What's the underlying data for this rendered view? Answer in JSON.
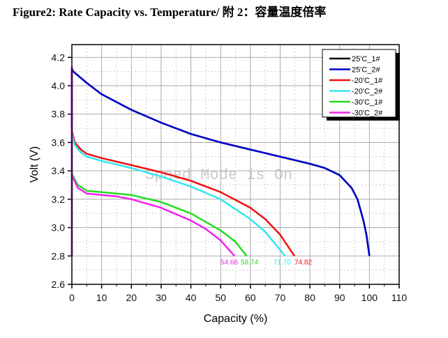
{
  "title": "Figure2: Rate Capacity vs. Temperature/  附 2：容量温度倍率",
  "watermark": "Speed Mode is On",
  "chart_data": {
    "type": "line",
    "title": "Figure2: Rate Capacity vs. Temperature/  附 2：容量温度倍率",
    "xlabel": "Capacity (%)",
    "ylabel": "Volt (V)",
    "xlim": [
      0,
      110
    ],
    "ylim": [
      2.6,
      4.29
    ],
    "xticks": [
      0,
      10,
      20,
      30,
      40,
      50,
      60,
      70,
      80,
      90,
      100,
      110
    ],
    "yticks": [
      2.6,
      2.8,
      3.0,
      3.2,
      3.4,
      3.6,
      3.8,
      4.0,
      4.2
    ],
    "grid": true,
    "legend_position": "top-right",
    "series": [
      {
        "name": "25'C_1#",
        "color": "#000000",
        "points": [
          [
            0,
            2.8
          ],
          [
            0,
            4.12
          ],
          [
            0.5,
            4.1
          ],
          [
            5,
            4.02
          ],
          [
            10,
            3.94
          ],
          [
            20,
            3.83
          ],
          [
            30,
            3.74
          ],
          [
            40,
            3.66
          ],
          [
            50,
            3.6
          ],
          [
            60,
            3.55
          ],
          [
            70,
            3.5
          ],
          [
            80,
            3.45
          ],
          [
            85,
            3.42
          ],
          [
            90,
            3.37
          ],
          [
            94,
            3.28
          ],
          [
            96,
            3.2
          ],
          [
            98,
            3.05
          ],
          [
            99,
            2.95
          ],
          [
            100,
            2.8
          ]
        ]
      },
      {
        "name": "25'C_2#",
        "color": "#0000cc",
        "points": [
          [
            0,
            2.8
          ],
          [
            0,
            4.12
          ],
          [
            0.5,
            4.1
          ],
          [
            5,
            4.02
          ],
          [
            10,
            3.94
          ],
          [
            20,
            3.83
          ],
          [
            30,
            3.74
          ],
          [
            40,
            3.66
          ],
          [
            50,
            3.6
          ],
          [
            60,
            3.55
          ],
          [
            70,
            3.5
          ],
          [
            80,
            3.45
          ],
          [
            85,
            3.42
          ],
          [
            90,
            3.37
          ],
          [
            94,
            3.28
          ],
          [
            96,
            3.2
          ],
          [
            98,
            3.05
          ],
          [
            99,
            2.95
          ],
          [
            100,
            2.8
          ]
        ]
      },
      {
        "name": "-20'C_1#",
        "color": "#ee1111",
        "end_label": "74.82",
        "points": [
          [
            0,
            2.8
          ],
          [
            0,
            3.68
          ],
          [
            1,
            3.6
          ],
          [
            3,
            3.55
          ],
          [
            5,
            3.52
          ],
          [
            10,
            3.49
          ],
          [
            20,
            3.44
          ],
          [
            30,
            3.39
          ],
          [
            40,
            3.33
          ],
          [
            50,
            3.25
          ],
          [
            60,
            3.14
          ],
          [
            65,
            3.06
          ],
          [
            70,
            2.95
          ],
          [
            74.82,
            2.8
          ]
        ]
      },
      {
        "name": "-20'C_2#",
        "color": "#33e5ee",
        "end_label": "71.70",
        "points": [
          [
            0,
            2.8
          ],
          [
            0,
            3.66
          ],
          [
            1,
            3.58
          ],
          [
            3,
            3.53
          ],
          [
            5,
            3.5
          ],
          [
            10,
            3.47
          ],
          [
            20,
            3.42
          ],
          [
            30,
            3.36
          ],
          [
            40,
            3.29
          ],
          [
            50,
            3.2
          ],
          [
            60,
            3.06
          ],
          [
            65,
            2.97
          ],
          [
            71.7,
            2.8
          ]
        ]
      },
      {
        "name": "-30'C_1#",
        "color": "#22dd22",
        "end_label": "58.74",
        "points": [
          [
            0,
            2.8
          ],
          [
            0,
            3.38
          ],
          [
            2,
            3.3
          ],
          [
            5,
            3.26
          ],
          [
            10,
            3.25
          ],
          [
            15,
            3.24
          ],
          [
            20,
            3.23
          ],
          [
            30,
            3.18
          ],
          [
            40,
            3.1
          ],
          [
            50,
            2.98
          ],
          [
            55,
            2.9
          ],
          [
            58.74,
            2.8
          ]
        ]
      },
      {
        "name": "-30'C_2#",
        "color": "#ee22ee",
        "end_label": "54.66",
        "points": [
          [
            0,
            2.8
          ],
          [
            0,
            4.13
          ],
          [
            0,
            3.37
          ],
          [
            2,
            3.28
          ],
          [
            5,
            3.24
          ],
          [
            10,
            3.23
          ],
          [
            15,
            3.22
          ],
          [
            20,
            3.2
          ],
          [
            30,
            3.14
          ],
          [
            40,
            3.05
          ],
          [
            45,
            2.99
          ],
          [
            50,
            2.91
          ],
          [
            54.66,
            2.8
          ]
        ]
      }
    ]
  }
}
